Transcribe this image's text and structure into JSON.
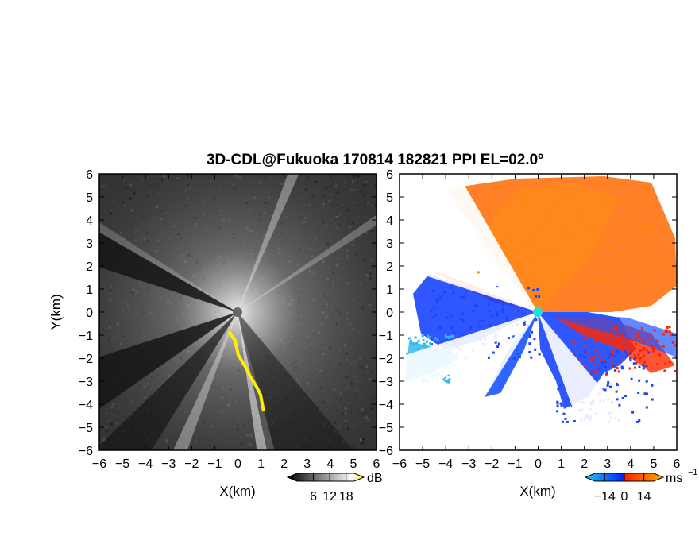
{
  "chart_data": {
    "type": "heatmap",
    "title": "3D-CDL@Fukuoka 170814 182821 PPI EL=02.0º",
    "panels": [
      {
        "id": "snr",
        "xlabel": "X(km)",
        "ylabel": "Y(km)",
        "xlim": [
          -6,
          6
        ],
        "ylim": [
          -6,
          6
        ],
        "xticks": [
          "−6",
          "−5",
          "−4",
          "−3",
          "−2",
          "−1",
          "0",
          "1",
          "2",
          "3",
          "4",
          "5",
          "6"
        ],
        "yticks": [
          "6",
          "5",
          "4",
          "3",
          "2",
          "1",
          "0",
          "−1",
          "−2",
          "−3",
          "−4",
          "−5",
          "−6"
        ],
        "colorbar": {
          "unit": "dB",
          "ticks": [
            "6",
            "12",
            "18"
          ],
          "range": [
            0,
            21
          ],
          "colors": [
            "#000000",
            "#ffffff",
            "#ffff00"
          ]
        },
        "blocked_sectors_deg": [
          [
            150,
            158
          ],
          [
            210,
            222
          ],
          [
            240,
            250
          ],
          [
            78,
            82
          ],
          [
            282,
            286
          ]
        ],
        "highlight_edge": {
          "label": "yellow",
          "color": "#ffee00"
        }
      },
      {
        "id": "doppler",
        "xlabel": "X(km)",
        "ylabel": "Y(km)",
        "xlim": [
          -6,
          6
        ],
        "ylim": [
          -6,
          6
        ],
        "xticks": [
          "−6",
          "−5",
          "−4",
          "−3",
          "−2",
          "−1",
          "0",
          "1",
          "2",
          "3",
          "4",
          "5",
          "6"
        ],
        "yticks": [
          "6",
          "5",
          "4",
          "3",
          "2",
          "1",
          "0",
          "−1",
          "−2",
          "−3",
          "−4",
          "−5",
          "−6"
        ],
        "colorbar": {
          "unit": "ms",
          "unit_exp": "−1",
          "ticks": [
            "−14",
            "0",
            "14"
          ],
          "range": [
            -21,
            21
          ],
          "colors": [
            "#22c8f0",
            "#0022ff",
            "#ff2200",
            "#ffaa00"
          ]
        },
        "origin_marker_color": "#22dddd"
      }
    ]
  }
}
